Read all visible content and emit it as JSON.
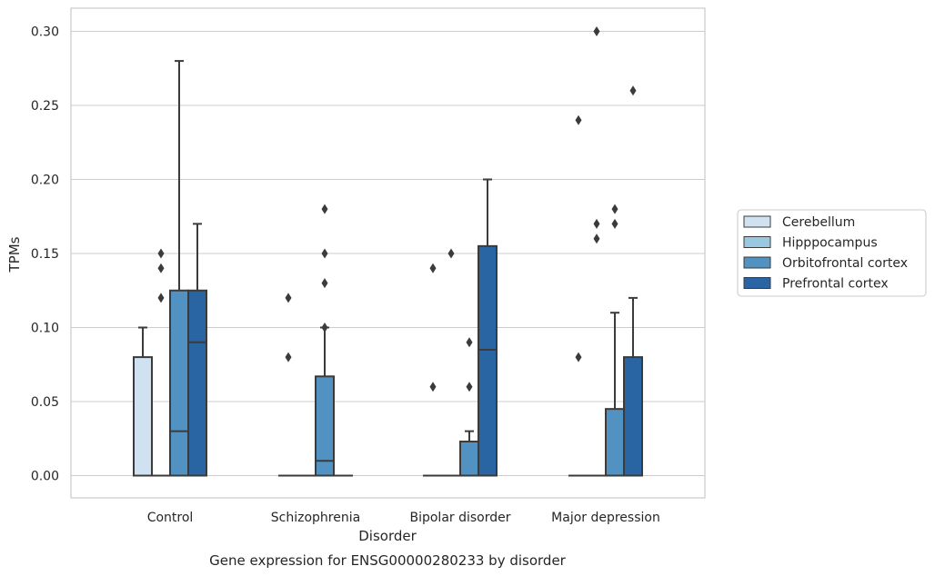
{
  "chart_data": {
    "type": "box",
    "title": "Gene expression for ENSG00000280233 by disorder",
    "xlabel": "Disorder",
    "ylabel": "TPMs",
    "ylim": [
      -0.015,
      0.315
    ],
    "yticks": [
      "0.00",
      "0.05",
      "0.10",
      "0.15",
      "0.20",
      "0.25",
      "0.30"
    ],
    "grid": "horizontal",
    "legend_position": "right",
    "categories": [
      "Control",
      "Schizophrenia",
      "Bipolar disorder",
      "Major depression"
    ],
    "series": [
      {
        "name": "Cerebellum",
        "color": "#d0e1f2",
        "boxes": [
          {
            "q1": 0.0,
            "median": 0.0,
            "q3": 0.08,
            "whisker_low": 0.0,
            "whisker_high": 0.1,
            "outliers": []
          },
          {
            "q1": 0.0,
            "median": 0.0,
            "q3": 0.0,
            "whisker_low": 0.0,
            "whisker_high": 0.0,
            "outliers": [
              0.08,
              0.12
            ]
          },
          {
            "q1": 0.0,
            "median": 0.0,
            "q3": 0.0,
            "whisker_low": 0.0,
            "whisker_high": 0.0,
            "outliers": [
              0.06,
              0.14
            ]
          },
          {
            "q1": 0.0,
            "median": 0.0,
            "q3": 0.0,
            "whisker_low": 0.0,
            "whisker_high": 0.0,
            "outliers": [
              0.08,
              0.24
            ]
          }
        ]
      },
      {
        "name": "Hipppocampus",
        "color": "#9ac8e0",
        "boxes": [
          {
            "q1": 0.0,
            "median": 0.0,
            "q3": 0.0,
            "whisker_low": 0.0,
            "whisker_high": 0.0,
            "outliers": [
              0.12,
              0.14,
              0.15
            ]
          },
          {
            "q1": 0.0,
            "median": 0.0,
            "q3": 0.0,
            "whisker_low": 0.0,
            "whisker_high": 0.0,
            "outliers": []
          },
          {
            "q1": 0.0,
            "median": 0.0,
            "q3": 0.0,
            "whisker_low": 0.0,
            "whisker_high": 0.0,
            "outliers": [
              0.15
            ]
          },
          {
            "q1": 0.0,
            "median": 0.0,
            "q3": 0.0,
            "whisker_low": 0.0,
            "whisker_high": 0.0,
            "outliers": [
              0.16,
              0.17,
              0.3
            ]
          }
        ]
      },
      {
        "name": "Orbitofrontal cortex",
        "color": "#5292c2",
        "boxes": [
          {
            "q1": 0.0,
            "median": 0.03,
            "q3": 0.125,
            "whisker_low": 0.0,
            "whisker_high": 0.28,
            "outliers": []
          },
          {
            "q1": 0.0,
            "median": 0.01,
            "q3": 0.067,
            "whisker_low": 0.0,
            "whisker_high": 0.1,
            "outliers": [
              0.1,
              0.13,
              0.15,
              0.18
            ]
          },
          {
            "q1": 0.0,
            "median": 0.0,
            "q3": 0.023,
            "whisker_low": 0.0,
            "whisker_high": 0.03,
            "outliers": [
              0.06,
              0.09
            ]
          },
          {
            "q1": 0.0,
            "median": 0.0,
            "q3": 0.045,
            "whisker_low": 0.0,
            "whisker_high": 0.11,
            "outliers": [
              0.17,
              0.18
            ]
          }
        ]
      },
      {
        "name": "Prefrontal cortex",
        "color": "#2865a2",
        "boxes": [
          {
            "q1": 0.0,
            "median": 0.09,
            "q3": 0.125,
            "whisker_low": 0.0,
            "whisker_high": 0.17,
            "outliers": []
          },
          {
            "q1": 0.0,
            "median": 0.0,
            "q3": 0.0,
            "whisker_low": 0.0,
            "whisker_high": 0.0,
            "outliers": []
          },
          {
            "q1": 0.0,
            "median": 0.085,
            "q3": 0.155,
            "whisker_low": 0.0,
            "whisker_high": 0.2,
            "outliers": []
          },
          {
            "q1": 0.0,
            "median": 0.0,
            "q3": 0.08,
            "whisker_low": 0.0,
            "whisker_high": 0.12,
            "outliers": [
              0.26
            ]
          }
        ]
      }
    ]
  }
}
